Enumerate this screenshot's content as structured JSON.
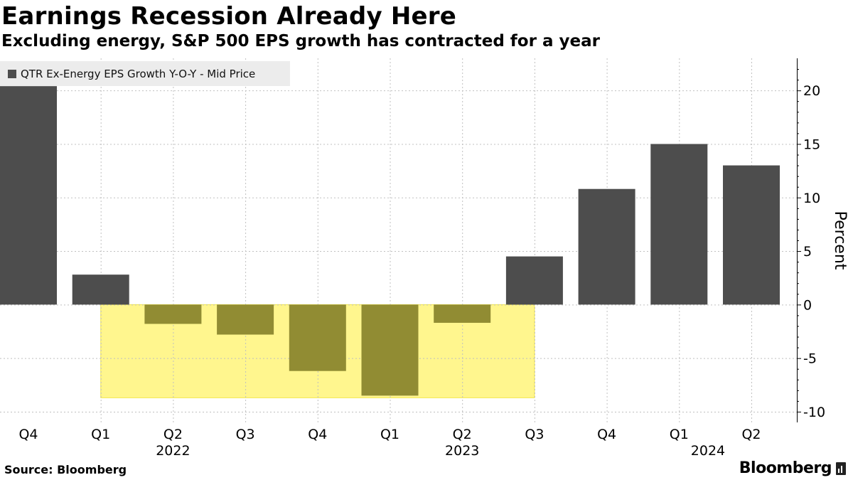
{
  "header": {
    "title": "Earnings Recession Already Here",
    "subtitle": "Excluding energy, S&P 500 EPS growth has contracted for a year"
  },
  "footer": {
    "source": "Source: Bloomberg",
    "brand": "Bloomberg",
    "brand_icon": "bloomberg-bars-icon"
  },
  "colors": {
    "bar_positive": "#4d4d4d",
    "bar_negative": "#918c33",
    "highlight": "#fff68e",
    "highlight_border": "#f2e64a",
    "grid": "#c0c0c0"
  },
  "chart_data": {
    "type": "bar",
    "title": "Earnings Recession Already Here",
    "subtitle": "Excluding energy, S&P 500 EPS growth has contracted for a year",
    "categories": [
      "Q4",
      "Q1",
      "Q2",
      "Q3",
      "Q4",
      "Q1",
      "Q2",
      "Q3",
      "Q4",
      "Q1",
      "Q2"
    ],
    "year_labels": [
      {
        "label": "2022",
        "at_category": 2
      },
      {
        "label": "2023",
        "at_category": 6
      },
      {
        "label": "2024",
        "at_category": 9.4
      }
    ],
    "series": [
      {
        "name": "QTR Ex-Energy EPS Growth Y-O-Y - Mid Price",
        "values": [
          20.4,
          2.8,
          -1.8,
          -2.8,
          -6.2,
          -8.5,
          -1.7,
          4.5,
          10.8,
          15.0,
          13.0
        ]
      }
    ],
    "highlight_region": {
      "from_category": 1,
      "to_category": 7,
      "ymin": -8.7,
      "ymax": 0
    },
    "ylabel": "Percent",
    "xlabel": "",
    "ylim": [
      -11,
      23
    ],
    "yticks": [
      20,
      15,
      10,
      5,
      0,
      -5,
      -10
    ],
    "ytick_labels": [
      "20",
      "15",
      "10",
      "5",
      "0",
      "-5",
      "-10"
    ],
    "axis_position": "right",
    "grid": true,
    "legend_position": "top-left"
  }
}
